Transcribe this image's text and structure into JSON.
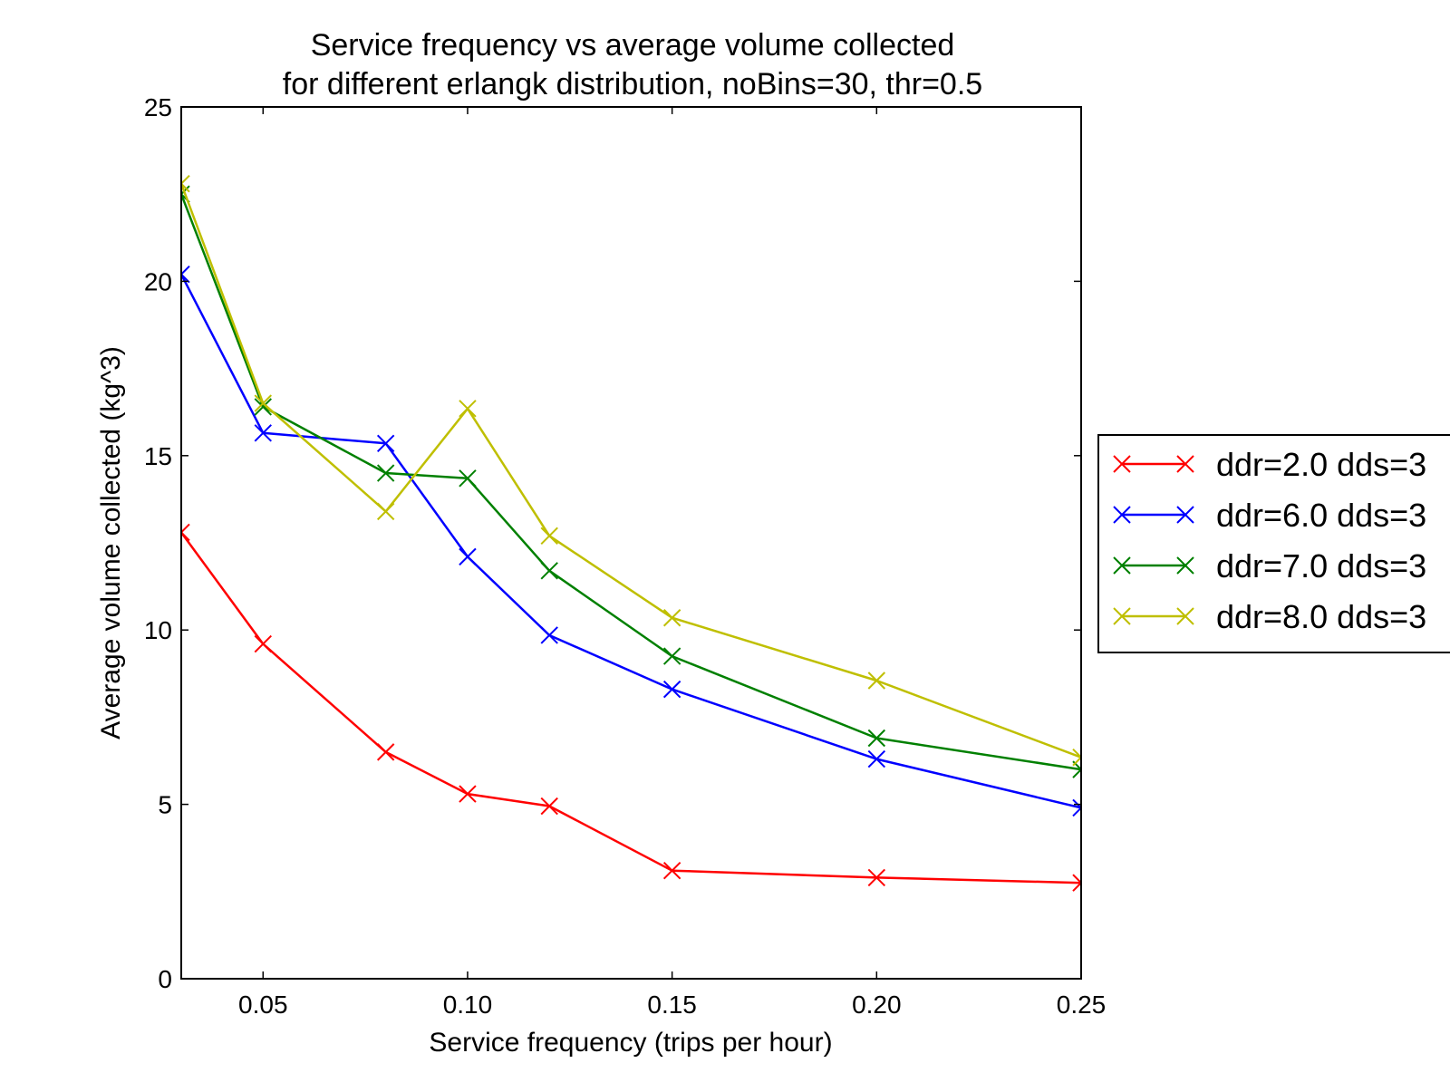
{
  "chart_data": {
    "type": "line",
    "title": "Service frequency vs average volume collected",
    "subtitle": "for different erlangk distribution, noBins=30, thr=0.5",
    "xlabel": "Service frequency (trips per hour)",
    "ylabel": "Average volume collected (kg^3)",
    "xlim": [
      0.03,
      0.25
    ],
    "ylim": [
      0,
      25
    ],
    "xticks": [
      0.05,
      0.1,
      0.15,
      0.2,
      0.25
    ],
    "xtick_labels": [
      "0.05",
      "0.10",
      "0.15",
      "0.20",
      "0.25"
    ],
    "yticks": [
      0,
      5,
      10,
      15,
      20,
      25
    ],
    "ytick_labels": [
      "0",
      "5",
      "10",
      "15",
      "20",
      "25"
    ],
    "grid": false,
    "legend_position": "right, outside plot",
    "marker": "x",
    "x": [
      0.03,
      0.05,
      0.08,
      0.1,
      0.12,
      0.15,
      0.2,
      0.25
    ],
    "series": [
      {
        "name": "ddr=2.0 dds=3",
        "color": "#ff0000",
        "values": [
          12.8,
          9.6,
          6.5,
          5.3,
          4.95,
          3.1,
          2.9,
          2.75
        ]
      },
      {
        "name": "ddr=6.0 dds=3",
        "color": "#0000ff",
        "values": [
          20.2,
          15.65,
          15.35,
          12.1,
          9.85,
          8.3,
          6.3,
          4.9
        ]
      },
      {
        "name": "ddr=7.0 dds=3",
        "color": "#008000",
        "values": [
          22.5,
          16.4,
          14.5,
          14.35,
          11.7,
          9.25,
          6.9,
          6.0
        ]
      },
      {
        "name": "ddr=8.0 dds=3",
        "color": "#bfbf00",
        "values": [
          22.8,
          16.5,
          13.4,
          16.35,
          12.7,
          10.35,
          8.55,
          6.35
        ]
      }
    ]
  }
}
